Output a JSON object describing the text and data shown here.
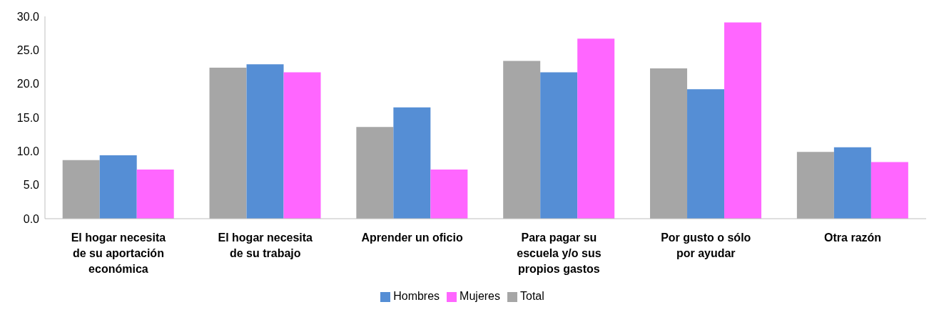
{
  "chart_data": {
    "type": "bar",
    "categories": [
      "El hogar necesita de su aportación económica",
      "El hogar necesita de su trabajo",
      "Aprender un oficio",
      "Para pagar su escuela y/o sus propios gastos",
      "Por gusto o sólo por ayudar",
      "Otra razón"
    ],
    "series": [
      {
        "name": "Total",
        "color": "#a6a6a6",
        "values": [
          8.7,
          22.4,
          13.6,
          23.4,
          22.3,
          9.9
        ]
      },
      {
        "name": "Hombres",
        "color": "#558ed5",
        "values": [
          9.4,
          22.9,
          16.5,
          21.7,
          19.2,
          10.6
        ]
      },
      {
        "name": "Mujeres",
        "color": "#ff66ff",
        "values": [
          7.3,
          21.7,
          7.3,
          26.7,
          29.1,
          8.4
        ]
      }
    ],
    "ylim": [
      0,
      30
    ],
    "yticks": [
      {
        "value": 0,
        "label": "0.0"
      },
      {
        "value": 5,
        "label": "5.0"
      },
      {
        "value": 10,
        "label": "10.0"
      },
      {
        "value": 15,
        "label": "15.0"
      },
      {
        "value": 20,
        "label": "20.0"
      },
      {
        "value": 25,
        "label": "25.0"
      },
      {
        "value": 30,
        "label": "30.0"
      }
    ],
    "grid": false,
    "legend": "bottom"
  }
}
